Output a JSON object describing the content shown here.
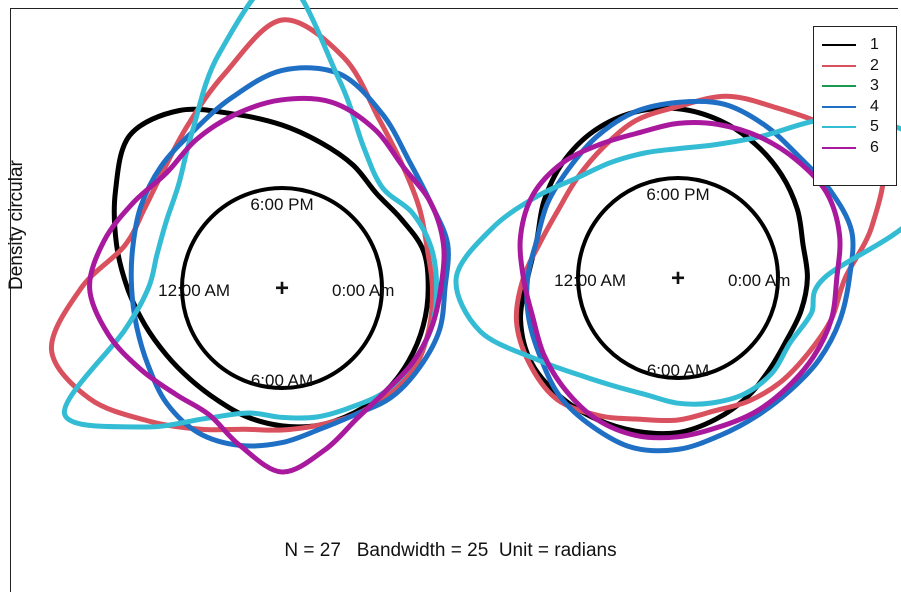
{
  "chart_data": {
    "type": "line",
    "ylabel": "Density circular",
    "caption": "N = 27   Bandwidth = 25  Unit = radians",
    "legend_position": "top-right",
    "dial_labels": {
      "top": "6:00 PM",
      "right": "0:00 Am",
      "bottom": "6:00 AM",
      "left": "12:00 AM",
      "center": "+"
    },
    "series": [
      {
        "name": "1",
        "color": "#000000"
      },
      {
        "name": "2",
        "color": "#d9505e"
      },
      {
        "name": "3",
        "color": "#1a9a50"
      },
      {
        "name": "4",
        "color": "#1f6fc4"
      },
      {
        "name": "5",
        "color": "#33bcd4"
      },
      {
        "name": "6",
        "color": "#a8199e"
      }
    ],
    "panels": [
      {
        "dial_labels": {
          "top": "6:00 PM",
          "right": "0:00 Am",
          "bottom": "6:00 AM",
          "left": "12:00 AM"
        },
        "curves": [
          {
            "series": "1",
            "density": [
              0.22,
              0.22,
              0.18,
              0.16,
              0.2,
              0.24,
              0.3,
              0.38,
              0.5,
              0.55,
              0.44,
              0.34,
              0.26,
              0.2,
              0.16,
              0.14,
              0.14,
              0.16,
              0.18,
              0.2,
              0.21,
              0.22,
              0.22,
              0.22
            ]
          },
          {
            "series": "2",
            "density": [
              0.24,
              0.24,
              0.28,
              0.34,
              0.45,
              0.66,
              0.8,
              0.58,
              0.42,
              0.32,
              0.28,
              0.3,
              0.48,
              0.66,
              0.58,
              0.42,
              0.3,
              0.22,
              0.2,
              0.2,
              0.22,
              0.24,
              0.26,
              0.25
            ]
          },
          {
            "series": "4",
            "density": [
              0.3,
              0.34,
              0.34,
              0.38,
              0.48,
              0.58,
              0.56,
              0.46,
              0.38,
              0.34,
              0.3,
              0.26,
              0.24,
              0.24,
              0.26,
              0.3,
              0.32,
              0.3,
              0.26,
              0.22,
              0.22,
              0.26,
              0.28,
              0.3
            ]
          },
          {
            "series": "5",
            "density": [
              0.26,
              0.26,
              0.24,
              0.2,
              0.3,
              0.56,
              1.0,
              0.68,
              0.38,
              0.22,
              0.16,
              0.14,
              0.16,
              0.3,
              0.72,
              0.46,
              0.24,
              0.14,
              0.14,
              0.16,
              0.18,
              0.22,
              0.24,
              0.26
            ]
          },
          {
            "series": "6",
            "density": [
              0.28,
              0.32,
              0.34,
              0.34,
              0.4,
              0.44,
              0.42,
              0.38,
              0.34,
              0.3,
              0.34,
              0.4,
              0.44,
              0.38,
              0.3,
              0.24,
              0.22,
              0.3,
              0.4,
              0.32,
              0.24,
              0.22,
              0.24,
              0.26
            ]
          }
        ]
      },
      {
        "dial_labels": {
          "top": "6:00 PM",
          "right": "0:00 Am",
          "bottom": "6:00 AM",
          "left": "12:00 AM"
        },
        "curves": [
          {
            "series": "1",
            "density": [
              0.14,
              0.14,
              0.18,
              0.22,
              0.26,
              0.3,
              0.33,
              0.34,
              0.33,
              0.3,
              0.26,
              0.22,
              0.24,
              0.3,
              0.33,
              0.32,
              0.3,
              0.28,
              0.26,
              0.22,
              0.18,
              0.14,
              0.12,
              0.13
            ]
          },
          {
            "series": "2",
            "density": [
              0.32,
              0.48,
              0.64,
              0.54,
              0.46,
              0.42,
              0.34,
              0.3,
              0.24,
              0.2,
              0.18,
              0.2,
              0.26,
              0.32,
              0.34,
              0.34,
              0.28,
              0.22,
              0.2,
              0.18,
              0.2,
              0.22,
              0.24,
              0.28
            ]
          },
          {
            "series": "4",
            "density": [
              0.34,
              0.38,
              0.36,
              0.34,
              0.36,
              0.38,
              0.36,
              0.34,
              0.3,
              0.26,
              0.24,
              0.22,
              0.24,
              0.26,
              0.28,
              0.32,
              0.34,
              0.36,
              0.34,
              0.3,
              0.28,
              0.28,
              0.3,
              0.32
            ]
          },
          {
            "series": "5",
            "density": [
              0.22,
              0.7,
              0.84,
              0.6,
              0.3,
              0.18,
              0.14,
              0.14,
              0.16,
              0.2,
              0.3,
              0.44,
              0.58,
              0.5,
              0.3,
              0.18,
              0.12,
              0.1,
              0.12,
              0.14,
              0.16,
              0.16,
              0.14,
              0.18
            ]
          },
          {
            "series": "6",
            "density": [
              0.28,
              0.32,
              0.34,
              0.32,
              0.3,
              0.28,
              0.26,
              0.24,
              0.26,
              0.3,
              0.32,
              0.3,
              0.26,
              0.24,
              0.26,
              0.28,
              0.3,
              0.3,
              0.28,
              0.26,
              0.26,
              0.26,
              0.27,
              0.28
            ]
          }
        ]
      }
    ]
  }
}
